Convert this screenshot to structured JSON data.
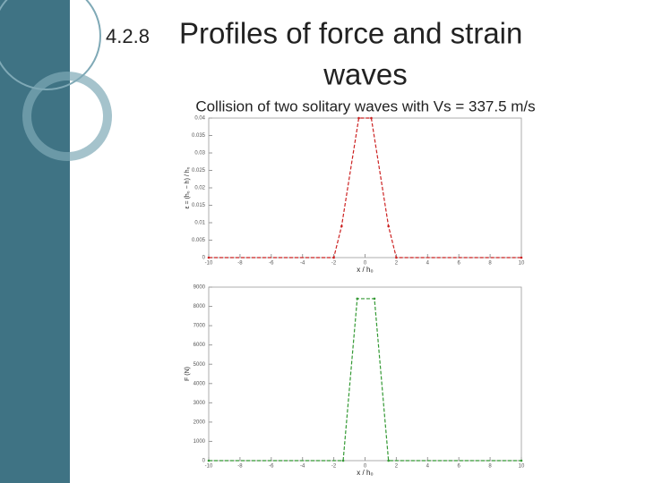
{
  "header": {
    "section": "4.2.8",
    "title_line1": "Profiles of force and strain",
    "title_line2": "waves",
    "subtitle": "Collision of two solitary waves with Vs = 337.5 m/s"
  },
  "chart_data": [
    {
      "type": "line",
      "xlabel": "x / h₀",
      "ylabel": "ε = (h₀ − h) / h₀",
      "x": [
        -10,
        -2,
        -1.5,
        -0.4,
        0.4,
        1.5,
        2,
        10
      ],
      "values": [
        0,
        0,
        0.009,
        0.04,
        0.04,
        0.009,
        0,
        0
      ],
      "color": "#cc2222",
      "line_style": "dashed",
      "xlim": [
        -10,
        10
      ],
      "xticks": [
        -10,
        -8,
        -6,
        -4,
        -2,
        0,
        2,
        4,
        6,
        8,
        10
      ],
      "ylim": [
        0,
        0.04
      ],
      "yticks": [
        0,
        0.005,
        0.01,
        0.015,
        0.02,
        0.025,
        0.03,
        0.035,
        0.04
      ]
    },
    {
      "type": "line",
      "xlabel": "x / h₀",
      "ylabel": "F (N)",
      "x": [
        -10,
        -1.4,
        -0.5,
        0.6,
        1.5,
        10
      ],
      "values": [
        0,
        0,
        8400,
        8400,
        0,
        0
      ],
      "color": "#339933",
      "line_style": "dashed",
      "xlim": [
        -10,
        10
      ],
      "xticks": [
        -10,
        -8,
        -6,
        -4,
        -2,
        0,
        2,
        4,
        6,
        8,
        10
      ],
      "ylim": [
        0,
        9000
      ],
      "yticks": [
        0,
        1000,
        2000,
        3000,
        4000,
        5000,
        6000,
        7000,
        8000,
        9000
      ]
    }
  ]
}
